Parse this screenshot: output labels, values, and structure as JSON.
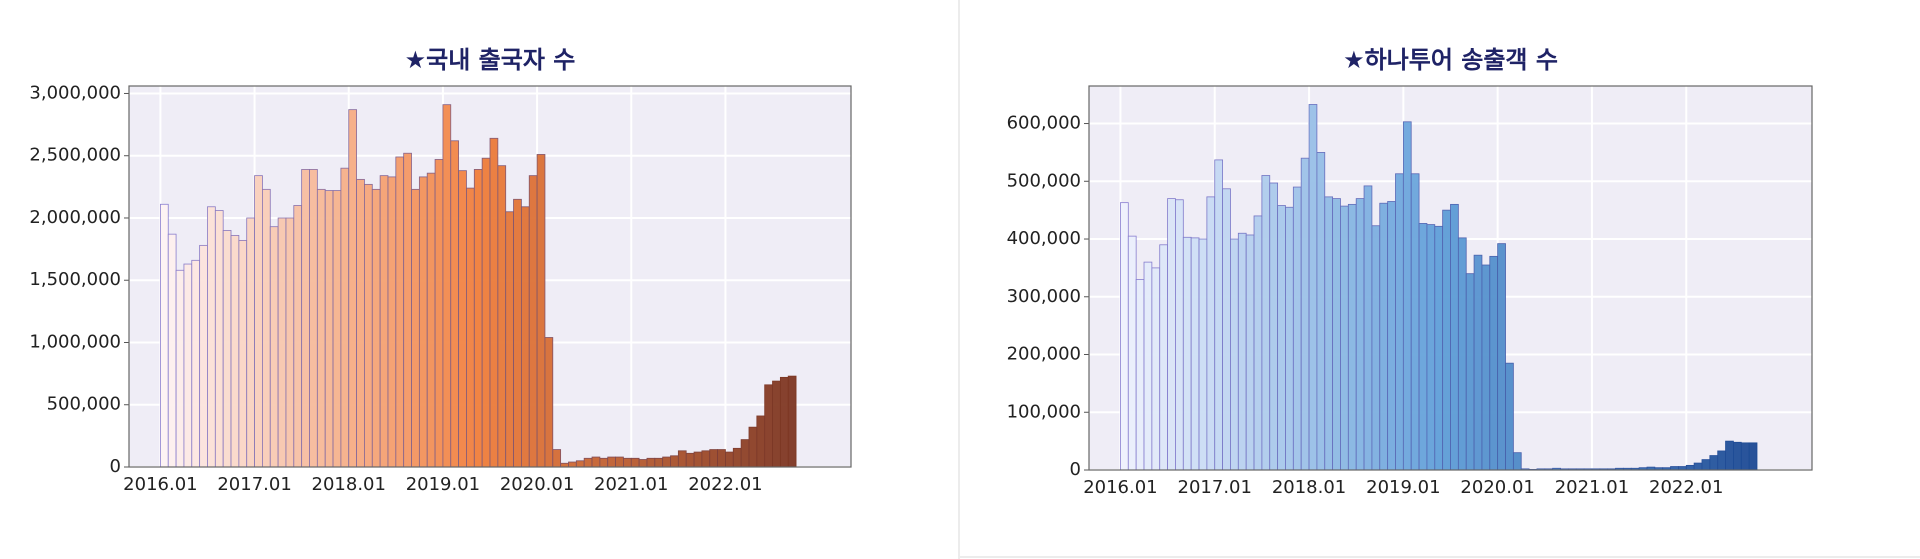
{
  "chart_data": [
    {
      "type": "bar",
      "title": "★국내 출국자 수",
      "categories": [
        "2016.01",
        null,
        null,
        null,
        null,
        null,
        null,
        null,
        null,
        null,
        null,
        null,
        "2017.01",
        null,
        null,
        null,
        null,
        null,
        null,
        null,
        null,
        null,
        null,
        null,
        "2018.01",
        null,
        null,
        null,
        null,
        null,
        null,
        null,
        null,
        null,
        null,
        null,
        "2019.01",
        null,
        null,
        null,
        null,
        null,
        null,
        null,
        null,
        null,
        null,
        null,
        "2020.01",
        null,
        null,
        null,
        null,
        null,
        null,
        null,
        null,
        null,
        null,
        null,
        "2021.01",
        null,
        null,
        null,
        null,
        null,
        null,
        null,
        null,
        null,
        null,
        null,
        "2022.01",
        null,
        null,
        null,
        null,
        null,
        null,
        null,
        null
      ],
      "values": [
        2110000,
        1870000,
        1580000,
        1630000,
        1660000,
        1780000,
        2090000,
        2060000,
        1900000,
        1860000,
        1820000,
        2000000,
        2340000,
        2230000,
        1930000,
        2000000,
        2000000,
        2100000,
        2390000,
        2390000,
        2230000,
        2220000,
        2220000,
        2400000,
        2870000,
        2310000,
        2270000,
        2230000,
        2340000,
        2330000,
        2490000,
        2520000,
        2230000,
        2330000,
        2360000,
        2470000,
        2910000,
        2620000,
        2380000,
        2240000,
        2390000,
        2480000,
        2640000,
        2420000,
        2050000,
        2150000,
        2090000,
        2340000,
        2510000,
        1040000,
        140000,
        30000,
        40000,
        50000,
        70000,
        80000,
        70000,
        80000,
        80000,
        70000,
        70000,
        60000,
        70000,
        70000,
        80000,
        90000,
        130000,
        110000,
        120000,
        130000,
        140000,
        140000,
        120000,
        150000,
        220000,
        320000,
        410000,
        660000,
        690000,
        720000,
        730000
      ],
      "colors": [
        "#fdf3f3",
        "#f07e3a",
        "#7c3622"
      ],
      "ylim": [
        0,
        3060000
      ],
      "yticks": [
        0,
        {
          "value": 500000,
          "label": "500,000"
        },
        {
          "value": 1000000,
          "label": "1,000,000"
        },
        {
          "value": 1500000,
          "label": "1,500,000"
        },
        {
          "value": 2000000,
          "label": "2,000,000"
        },
        {
          "value": 2500000,
          "label": "2,500,000"
        },
        {
          "value": 3000000,
          "label": "3,000,000"
        }
      ],
      "grid": true
    },
    {
      "type": "bar",
      "title": "★하나투어 송출객 수",
      "categories": [
        "2016.01",
        null,
        null,
        null,
        null,
        null,
        null,
        null,
        null,
        null,
        null,
        null,
        "2017.01",
        null,
        null,
        null,
        null,
        null,
        null,
        null,
        null,
        null,
        null,
        null,
        "2018.01",
        null,
        null,
        null,
        null,
        null,
        null,
        null,
        null,
        null,
        null,
        null,
        "2019.01",
        null,
        null,
        null,
        null,
        null,
        null,
        null,
        null,
        null,
        null,
        null,
        "2020.01",
        null,
        null,
        null,
        null,
        null,
        null,
        null,
        null,
        null,
        null,
        null,
        "2021.01",
        null,
        null,
        null,
        null,
        null,
        null,
        null,
        null,
        null,
        null,
        null,
        "2022.01",
        null,
        null,
        null,
        null,
        null,
        null,
        null,
        null
      ],
      "values": [
        463000,
        405000,
        330000,
        360000,
        350000,
        390000,
        470000,
        468000,
        403000,
        402000,
        400000,
        473000,
        537000,
        487000,
        400000,
        410000,
        407000,
        440000,
        510000,
        497000,
        458000,
        455000,
        490000,
        540000,
        633000,
        550000,
        473000,
        470000,
        457000,
        460000,
        470000,
        492000,
        423000,
        462000,
        465000,
        513000,
        603000,
        513000,
        427000,
        425000,
        422000,
        450000,
        460000,
        402000,
        340000,
        372000,
        355000,
        370000,
        392000,
        185000,
        30000,
        2000,
        1000,
        2000,
        2000,
        3000,
        2000,
        2000,
        2000,
        2000,
        2000,
        2000,
        2000,
        3000,
        3000,
        3000,
        4000,
        5000,
        4000,
        4000,
        6000,
        6000,
        8000,
        12000,
        18000,
        25000,
        33000,
        50000,
        48000,
        47000,
        47000
      ],
      "colors": [
        "#eef1fd",
        "#5f9fd8",
        "#1c4a94"
      ],
      "ylim": [
        0,
        665000
      ],
      "yticks": [
        0,
        {
          "value": 100000,
          "label": "100,000"
        },
        {
          "value": 200000,
          "label": "200,000"
        },
        {
          "value": 300000,
          "label": "300,000"
        },
        {
          "value": 400000,
          "label": "400,000"
        },
        {
          "value": 500000,
          "label": "500,000"
        },
        {
          "value": 600000,
          "label": "600,000"
        }
      ],
      "grid": true
    }
  ]
}
